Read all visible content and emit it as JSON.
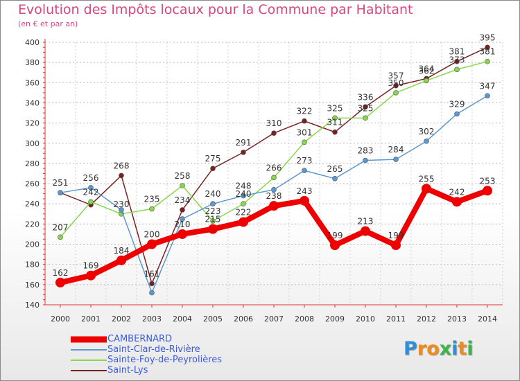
{
  "chart_data": {
    "type": "line",
    "title": "Evolution des Impôts locaux pour la Commune par Habitant",
    "subtitle": "(en € et par an)",
    "xlabel": "",
    "ylabel": "",
    "x": [
      "2000",
      "2001",
      "2002",
      "2003",
      "2004",
      "2005",
      "2006",
      "2007",
      "2008",
      "2009",
      "2010",
      "2011",
      "2012",
      "2013",
      "2014"
    ],
    "ylim": [
      140,
      400
    ],
    "yticks": [
      "140",
      "160",
      "180",
      "200",
      "220",
      "240",
      "260",
      "280",
      "300",
      "320",
      "340",
      "360",
      "380",
      "400"
    ],
    "grid": "horizontal dashed",
    "legend_position": "bottom-left",
    "series": [
      {
        "name": "CAMBERNARD",
        "color": "#ee0000",
        "values": [
          162,
          169,
          184,
          200,
          210,
          215,
          222,
          238,
          243,
          199,
          213,
          199,
          255,
          242,
          253
        ],
        "labels": [
          "162",
          "169",
          "184",
          "200",
          "210",
          "215",
          "222",
          "238",
          "243",
          "199",
          "213",
          "199",
          "255",
          "242",
          "253"
        ]
      },
      {
        "name": "Saint-Clar-de-Rivière",
        "color": "#5a98cf",
        "values": [
          251,
          256,
          234,
          152,
          225,
          240,
          248,
          254,
          273,
          265,
          283,
          284,
          302,
          329,
          347
        ],
        "labels": [
          "",
          "256",
          "",
          "",
          "",
          "240",
          "248",
          "",
          "273",
          "265",
          "283",
          "284",
          "302",
          "329",
          "347"
        ]
      },
      {
        "name": "Sainte-Foy-de-Peyrolières",
        "color": "#88d64c",
        "values": [
          207,
          242,
          230,
          235,
          258,
          223,
          240,
          266,
          301,
          325,
          325,
          350,
          362,
          373,
          381
        ],
        "labels": [
          "207",
          "242",
          "230",
          "235",
          "258",
          "223",
          "240",
          "266",
          "301",
          "325",
          "325",
          "350",
          "362",
          "373",
          "381"
        ]
      },
      {
        "name": "Saint-Lys",
        "color": "#772222",
        "values": [
          251,
          239,
          268,
          161,
          234,
          275,
          291,
          310,
          322,
          311,
          336,
          357,
          364,
          381,
          395
        ],
        "labels": [
          "251",
          "",
          "268",
          "161",
          "234",
          "275",
          "291",
          "310",
          "322",
          "311",
          "336",
          "357",
          "364",
          "381",
          "395"
        ]
      }
    ]
  },
  "legend": {
    "items": [
      {
        "label": "CAMBERNARD",
        "color": "#ee0000"
      },
      {
        "label": "Saint-Clar-de-Rivière",
        "color": "#5a98cf"
      },
      {
        "label": "Sainte-Foy-de-Peyrolières",
        "color": "#88d64c"
      },
      {
        "label": "Saint-Lys",
        "color": "#772222"
      }
    ]
  },
  "logo": {
    "letters": [
      "P",
      "r",
      "o",
      "x",
      "i",
      "t",
      "i"
    ],
    "colors": [
      "#2f8fd6",
      "#f08c1e",
      "#f08c1e",
      "#3bb54a",
      "#2f8fd6",
      "#f08c1e",
      "#3bb54a"
    ]
  }
}
